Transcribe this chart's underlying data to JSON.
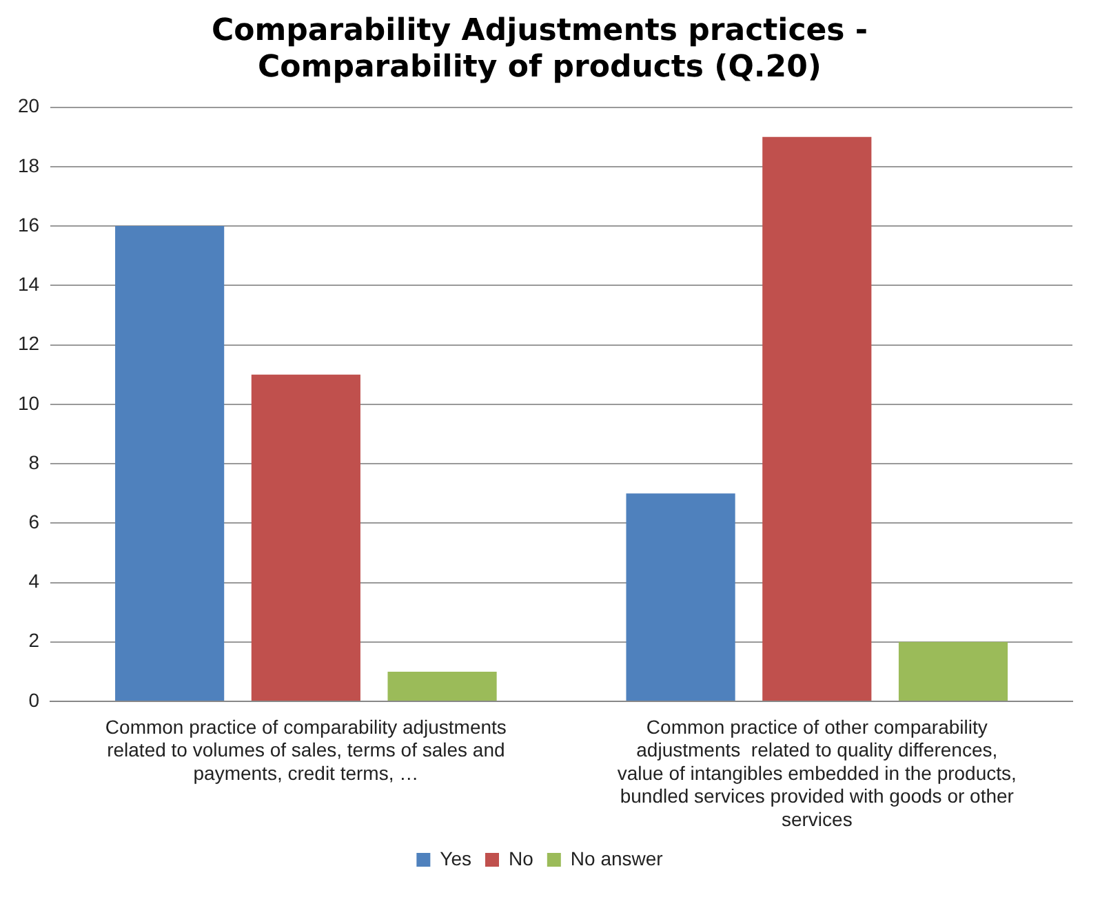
{
  "chart_data": {
    "type": "bar",
    "title": "Comparability Adjustments practices - Comparability of products (Q.20)",
    "categories": [
      "Common practice of comparability adjustments related to volumes of sales, terms of sales and payments, credit terms, …",
      "Common practice of other comparability adjustments  related to quality differences, value of intangibles embedded in the products, bundled services provided with goods or other services"
    ],
    "series": [
      {
        "name": "Yes",
        "color": "#4f81bd",
        "values": [
          16,
          7
        ]
      },
      {
        "name": "No",
        "color": "#c0504d",
        "values": [
          11,
          19
        ]
      },
      {
        "name": "No answer",
        "color": "#9bbb59",
        "values": [
          1,
          2
        ]
      }
    ],
    "ylim": [
      0,
      20
    ],
    "yticks": [
      0,
      2,
      4,
      6,
      8,
      10,
      12,
      14,
      16,
      18,
      20
    ],
    "grid": "y",
    "legend": "bottom"
  }
}
